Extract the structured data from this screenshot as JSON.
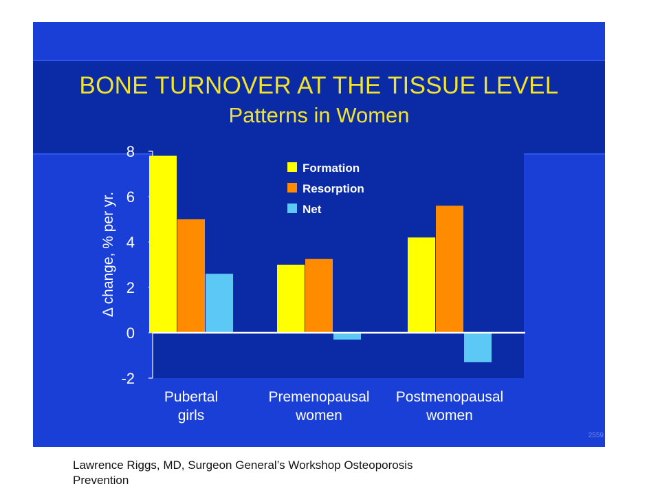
{
  "slide": {
    "title_line1": "BONE TURNOVER AT THE TISSUE LEVEL",
    "title_line2": "Patterns in Women",
    "slide_number": "2559",
    "colors": {
      "background": "#1a3fd6",
      "title_band": "#0a2aa6",
      "title_text": "#f2e42a",
      "axis_text": "#ffffff"
    }
  },
  "caption": {
    "line1": "Lawrence Riggs, MD, Surgeon General’s Workshop Osteoporosis",
    "line2": "Prevention"
  },
  "chart_data": {
    "type": "bar",
    "title": "",
    "xlabel": "",
    "ylabel": "Δ change, % per yr.",
    "ylim": [
      -2,
      8
    ],
    "yticks": [
      8,
      6,
      4,
      2,
      0,
      -2
    ],
    "grid": false,
    "legend_position": "top-right",
    "categories": [
      [
        "Pubertal",
        "girls"
      ],
      [
        "Premenopausal",
        "women"
      ],
      [
        "Postmenopausal",
        "women"
      ]
    ],
    "series": [
      {
        "name": "Formation",
        "color": "#ffff00",
        "values": [
          7.8,
          3.0,
          4.2
        ]
      },
      {
        "name": "Resorption",
        "color": "#ff8c00",
        "values": [
          5.0,
          3.25,
          5.6
        ]
      },
      {
        "name": "Net",
        "color": "#5bc8f5",
        "values": [
          2.6,
          -0.3,
          -1.3
        ]
      }
    ]
  }
}
